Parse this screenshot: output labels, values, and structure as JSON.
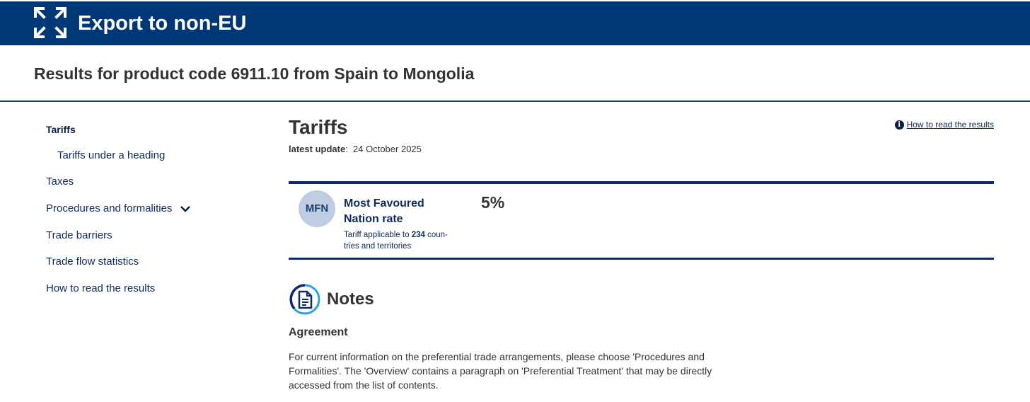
{
  "header": {
    "app_title": "Export to non-EU",
    "logo_icon": "expand-arrows-icon",
    "background_color": "#003776"
  },
  "page": {
    "heading": "Results for product code 6911.10 from Spain to Mongolia"
  },
  "sidebar": {
    "items": [
      {
        "label": "Tariffs",
        "active": true
      },
      {
        "label": "Tariffs under a heading"
      },
      {
        "label": "Taxes"
      },
      {
        "label": "Procedures and formalities",
        "icon": "chevron-down-icon"
      },
      {
        "label": "Trade barriers"
      },
      {
        "label": "Trade flow statistics"
      },
      {
        "label": "How to read the results"
      }
    ]
  },
  "main": {
    "section_title": "Tariffs",
    "update_label": "latest update",
    "update_value": "24 October 2025",
    "how_to_link": "How to read the results",
    "rate": {
      "badge": "MFN",
      "label": "Most Favoured Nation rate",
      "desc_prefix": "Tariff applicable to",
      "desc_count": "234",
      "desc_suffix": "coun-tries and territories",
      "value": "5%"
    },
    "notes": {
      "title": "Notes",
      "agreement_title": "Agreement",
      "agreement_text": "For current information on the preferential trade arrangements, please choose 'Procedures and Formalities'. The 'Overview' contains a paragraph on 'Preferential Treatment' that may be directly accessed from the list of contents."
    }
  },
  "colors": {
    "accent_dark": "#0e2a6b",
    "badge_bg": "#bfcde2",
    "notes_icon_ring": "#2ea3dc"
  }
}
